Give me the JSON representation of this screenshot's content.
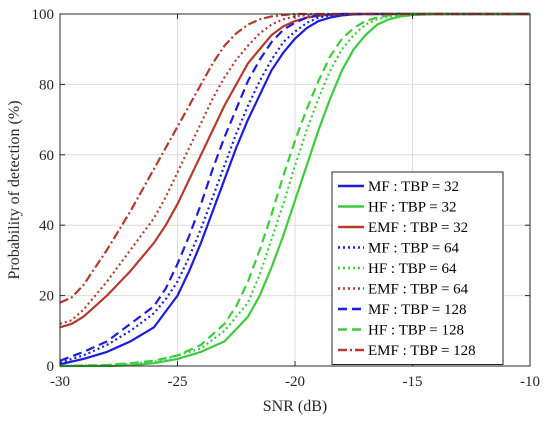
{
  "chart_data": {
    "type": "line",
    "xlabel": "SNR (dB)",
    "ylabel": "Probability of detection (%)",
    "xlim": [
      -30,
      -10
    ],
    "ylim": [
      0,
      100
    ],
    "xticks": [
      -30,
      -25,
      -20,
      -15,
      -10
    ],
    "yticks": [
      0,
      20,
      40,
      60,
      80,
      100
    ],
    "xtick_labels": [
      "-30",
      "-25",
      "-20",
      "-15",
      "-10"
    ],
    "ytick_labels": [
      "0",
      "20",
      "40",
      "60",
      "80",
      "100"
    ],
    "grid": true,
    "legend_position": "bottom-right",
    "series": [
      {
        "name": "MF : TBP = 32",
        "color": "#1c1cdc",
        "dash": "solid",
        "x": [
          -30,
          -29,
          -28,
          -27,
          -26,
          -25,
          -24.5,
          -24,
          -23.5,
          -23,
          -22.5,
          -22,
          -21.5,
          -21,
          -20.5,
          -20,
          -19.5,
          -19,
          -18.5,
          -18,
          -17.5,
          -17,
          -16,
          -15,
          -10
        ],
        "y": [
          0.5,
          2,
          4,
          7,
          11,
          20,
          27,
          35,
          44,
          53,
          62,
          70,
          77,
          84,
          89,
          93,
          96,
          98,
          99,
          99.6,
          99.9,
          100,
          100,
          100,
          100
        ]
      },
      {
        "name": "HF : TBP = 32",
        "color": "#3ccc3c",
        "dash": "solid",
        "x": [
          -30,
          -28,
          -27,
          -26,
          -25,
          -24,
          -23,
          -22,
          -21.5,
          -21,
          -20.5,
          -20,
          -19.5,
          -19,
          -18.5,
          -18,
          -17.5,
          -17,
          -16.5,
          -16,
          -15.5,
          -15,
          -14,
          -10
        ],
        "y": [
          0,
          0,
          0.2,
          0.8,
          2,
          4,
          7,
          14,
          20,
          28,
          37,
          47,
          57,
          67,
          76,
          84,
          90,
          94,
          97,
          98.5,
          99.3,
          99.7,
          100,
          100
        ]
      },
      {
        "name": "EMF : TBP = 32",
        "color": "#b33a2c",
        "dash": "solid",
        "x": [
          -30,
          -29.5,
          -29,
          -28,
          -27,
          -26,
          -25.5,
          -25,
          -24.5,
          -24,
          -23.5,
          -23,
          -22.5,
          -22,
          -21.5,
          -21,
          -20.5,
          -20,
          -19.5,
          -19,
          -18.5,
          -18,
          -17,
          -16,
          -10
        ],
        "y": [
          11,
          12,
          14,
          20,
          27,
          35,
          40,
          46,
          53,
          60,
          67,
          74,
          80,
          86,
          90,
          94,
          96.5,
          98,
          99,
          99.5,
          99.8,
          100,
          100,
          100,
          100
        ]
      },
      {
        "name": "MF : TBP = 64",
        "color": "#1c1cdc",
        "dash": "dot",
        "x": [
          -30,
          -29,
          -28,
          -27,
          -26,
          -25.5,
          -25,
          -24.5,
          -24,
          -23.5,
          -23,
          -22.5,
          -22,
          -21.5,
          -21,
          -20.5,
          -20,
          -19.5,
          -19,
          -18.5,
          -18,
          -17,
          -16,
          -10
        ],
        "y": [
          1,
          3,
          6,
          10,
          15,
          19,
          24,
          31,
          39,
          48,
          57,
          66,
          74,
          81,
          87,
          92,
          95,
          97.5,
          99,
          99.6,
          99.9,
          100,
          100,
          100
        ]
      },
      {
        "name": "HF : TBP = 64",
        "color": "#3ccc3c",
        "dash": "dot",
        "x": [
          -30,
          -28,
          -27,
          -26,
          -25,
          -24,
          -23,
          -22,
          -21.5,
          -21,
          -20.5,
          -20,
          -19.5,
          -19,
          -18.5,
          -18,
          -17.5,
          -17,
          -16.5,
          -16,
          -15,
          -10
        ],
        "y": [
          0,
          0.2,
          0.6,
          1.2,
          3,
          5,
          10,
          18,
          26,
          36,
          46,
          57,
          67,
          76,
          84,
          90,
          94,
          97,
          98.5,
          99.3,
          100,
          100
        ]
      },
      {
        "name": "EMF : TBP = 64",
        "color": "#b33a2c",
        "dash": "dot",
        "x": [
          -30,
          -29.5,
          -29,
          -28,
          -27,
          -26,
          -25.5,
          -25,
          -24.5,
          -24,
          -23.5,
          -23,
          -22.5,
          -22,
          -21.5,
          -21,
          -20.5,
          -20,
          -19.5,
          -19,
          -18,
          -17,
          -10
        ],
        "y": [
          12,
          13,
          16,
          24,
          33,
          42,
          48,
          55,
          62,
          69,
          76,
          82,
          87,
          91,
          94.5,
          97,
          98.5,
          99.3,
          99.7,
          100,
          100,
          100,
          100
        ]
      },
      {
        "name": "MF : TBP = 128",
        "color": "#1c1cdc",
        "dash": "dash",
        "x": [
          -30,
          -29,
          -28,
          -27,
          -26,
          -25.5,
          -25,
          -24.5,
          -24,
          -23.5,
          -23,
          -22.5,
          -22,
          -21.5,
          -21,
          -20.5,
          -20,
          -19.5,
          -19,
          -18.5,
          -18,
          -17,
          -10
        ],
        "y": [
          1.5,
          4,
          7,
          12,
          17,
          22,
          29,
          37,
          46,
          56,
          65,
          73,
          81,
          87,
          92,
          95.5,
          97.5,
          99,
          99.6,
          99.9,
          100,
          100,
          100
        ]
      },
      {
        "name": "HF : TBP = 128",
        "color": "#3ccc3c",
        "dash": "dash",
        "x": [
          -30,
          -28,
          -27,
          -26,
          -25,
          -24,
          -23,
          -22.5,
          -22,
          -21.5,
          -21,
          -20.5,
          -20,
          -19.5,
          -19,
          -18.5,
          -18,
          -17.5,
          -17,
          -16.5,
          -16,
          -15,
          -10
        ],
        "y": [
          0,
          0.3,
          0.8,
          1.5,
          3,
          6,
          12,
          17,
          24,
          33,
          43,
          54,
          64,
          73,
          81,
          88,
          93,
          96,
          98,
          99,
          99.6,
          100,
          100
        ]
      },
      {
        "name": "EMF : TBP = 128",
        "color": "#b33a2c",
        "dash": "dashdot",
        "x": [
          -30,
          -29.5,
          -29,
          -28.5,
          -28,
          -27,
          -26,
          -25.5,
          -25,
          -24.5,
          -24,
          -23.5,
          -23,
          -22.5,
          -22,
          -21.5,
          -21,
          -20.5,
          -20,
          -19,
          -18,
          -10
        ],
        "y": [
          18,
          19.5,
          23,
          28,
          33,
          44,
          56,
          62,
          68,
          74,
          80,
          86,
          91,
          94.5,
          97,
          98.5,
          99.3,
          99.7,
          100,
          100,
          100,
          100
        ]
      }
    ]
  }
}
